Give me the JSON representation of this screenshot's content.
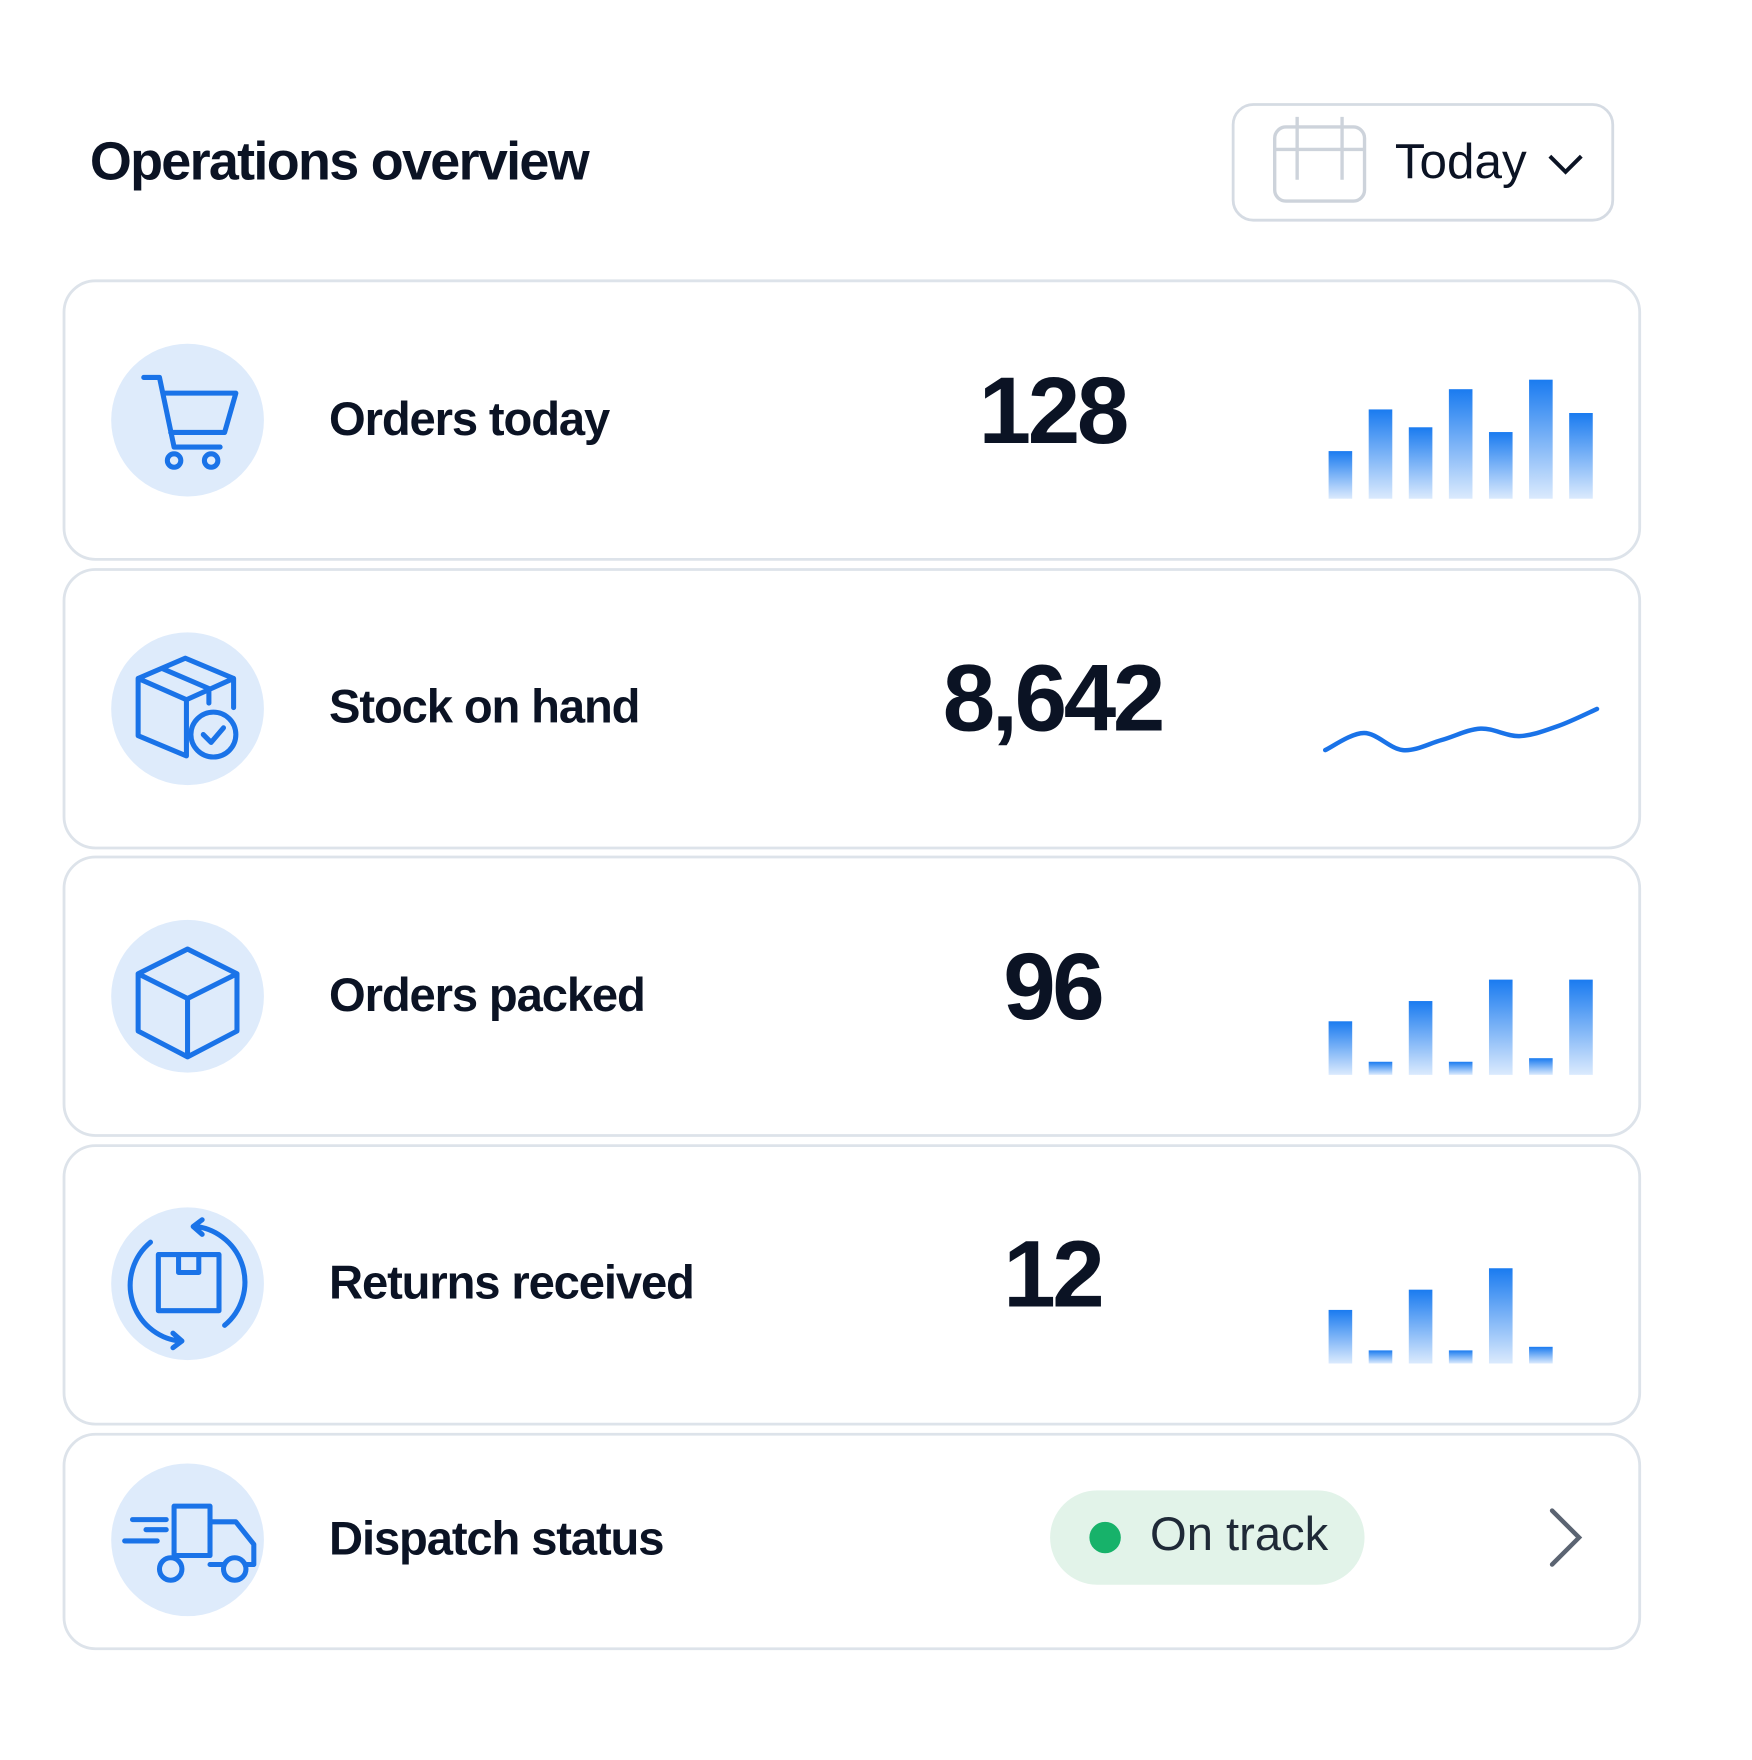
{
  "header": {
    "title": "Operations overview",
    "date_filter": "Today"
  },
  "metrics": [
    {
      "label": "Orders today",
      "value": "128",
      "trend": {
        "type": "bar",
        "values": [
          40,
          75,
          60,
          92,
          56,
          100,
          72
        ],
        "ylim": [
          0,
          100
        ]
      }
    },
    {
      "label": "Stock on hand",
      "value": "8,642",
      "trend": {
        "type": "line",
        "values": [
          3,
          42,
          3,
          26,
          52,
          35,
          58,
          97
        ],
        "ylim": [
          0,
          100
        ]
      }
    },
    {
      "label": "Orders packed",
      "value": "96",
      "trend": {
        "type": "bar",
        "values": [
          45,
          11,
          62,
          11,
          80,
          14,
          80
        ],
        "ylim": [
          0,
          100
        ]
      }
    },
    {
      "label": "Returns received",
      "value": "12",
      "trend": {
        "type": "bar",
        "values": [
          45,
          11,
          62,
          11,
          80,
          14
        ],
        "ylim": [
          0,
          100
        ]
      }
    }
  ],
  "dispatch": {
    "label": "Dispatch status",
    "status": "On track"
  }
}
